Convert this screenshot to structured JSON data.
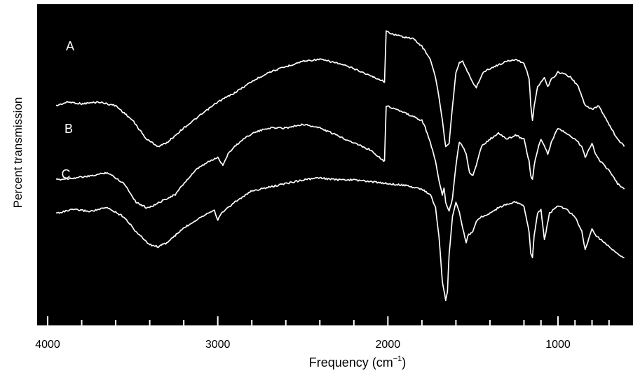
{
  "chart_data": {
    "type": "line",
    "xlabel": "Frequency (cm",
    "xlabel_sup": "−1",
    "xlabel_close": ")",
    "ylabel": "Percent transmission",
    "x_reversed": true,
    "xlim": [
      4000,
      610
    ],
    "x_tick_labels": [
      {
        "value": 4000,
        "label": "4000"
      },
      {
        "value": 3000,
        "label": "3000"
      },
      {
        "value": 2000,
        "label": "2000"
      },
      {
        "value": 1000,
        "label": "1000"
      }
    ],
    "minor_ticks": [
      3800,
      3600,
      3400,
      3200,
      2800,
      2600,
      2400,
      2200,
      1800,
      1600,
      1400,
      1200,
      1100,
      900,
      800,
      700
    ],
    "grid": false,
    "background": "#000000",
    "line_color": "#ffffff",
    "series": [
      {
        "name": "A",
        "points": [
          [
            3950,
            40
          ],
          [
            3880,
            38
          ],
          [
            3800,
            39
          ],
          [
            3700,
            38
          ],
          [
            3600,
            40
          ],
          [
            3500,
            48
          ],
          [
            3420,
            58
          ],
          [
            3350,
            62
          ],
          [
            3300,
            60
          ],
          [
            3200,
            52
          ],
          [
            3100,
            45
          ],
          [
            3000,
            38
          ],
          [
            2900,
            33
          ],
          [
            2800,
            27
          ],
          [
            2700,
            22
          ],
          [
            2600,
            19
          ],
          [
            2500,
            16
          ],
          [
            2400,
            15
          ],
          [
            2300,
            17
          ],
          [
            2200,
            20
          ],
          [
            2100,
            24
          ],
          [
            2020,
            27
          ],
          [
            2010,
            0
          ],
          [
            1950,
            2
          ],
          [
            1850,
            4
          ],
          [
            1800,
            8
          ],
          [
            1750,
            15
          ],
          [
            1720,
            25
          ],
          [
            1700,
            35
          ],
          [
            1680,
            48
          ],
          [
            1660,
            62
          ],
          [
            1640,
            60
          ],
          [
            1620,
            40
          ],
          [
            1600,
            22
          ],
          [
            1580,
            17
          ],
          [
            1560,
            16
          ],
          [
            1540,
            20
          ],
          [
            1520,
            24
          ],
          [
            1500,
            28
          ],
          [
            1480,
            30
          ],
          [
            1460,
            26
          ],
          [
            1440,
            22
          ],
          [
            1400,
            20
          ],
          [
            1350,
            18
          ],
          [
            1300,
            16
          ],
          [
            1250,
            15
          ],
          [
            1200,
            17
          ],
          [
            1170,
            25
          ],
          [
            1160,
            40
          ],
          [
            1150,
            48
          ],
          [
            1140,
            40
          ],
          [
            1120,
            30
          ],
          [
            1080,
            25
          ],
          [
            1060,
            30
          ],
          [
            1040,
            26
          ],
          [
            1000,
            22
          ],
          [
            960,
            23
          ],
          [
            920,
            25
          ],
          [
            880,
            30
          ],
          [
            840,
            40
          ],
          [
            800,
            42
          ],
          [
            760,
            40
          ],
          [
            700,
            50
          ],
          [
            650,
            58
          ],
          [
            610,
            62
          ]
        ]
      },
      {
        "name": "B",
        "points": [
          [
            3950,
            80
          ],
          [
            3850,
            79
          ],
          [
            3750,
            78
          ],
          [
            3650,
            76
          ],
          [
            3550,
            82
          ],
          [
            3480,
            92
          ],
          [
            3420,
            95
          ],
          [
            3380,
            94
          ],
          [
            3300,
            90
          ],
          [
            3250,
            88
          ],
          [
            3200,
            82
          ],
          [
            3120,
            74
          ],
          [
            3050,
            70
          ],
          [
            3000,
            68
          ],
          [
            2970,
            72
          ],
          [
            2940,
            66
          ],
          [
            2900,
            62
          ],
          [
            2850,
            58
          ],
          [
            2800,
            55
          ],
          [
            2700,
            52
          ],
          [
            2600,
            52
          ],
          [
            2500,
            50
          ],
          [
            2400,
            52
          ],
          [
            2300,
            56
          ],
          [
            2200,
            60
          ],
          [
            2100,
            64
          ],
          [
            2020,
            70
          ],
          [
            2010,
            40
          ],
          [
            1950,
            42
          ],
          [
            1900,
            44
          ],
          [
            1850,
            46
          ],
          [
            1800,
            48
          ],
          [
            1780,
            52
          ],
          [
            1750,
            60
          ],
          [
            1720,
            70
          ],
          [
            1700,
            80
          ],
          [
            1680,
            88
          ],
          [
            1670,
            84
          ],
          [
            1660,
            92
          ],
          [
            1640,
            97
          ],
          [
            1620,
            90
          ],
          [
            1600,
            72
          ],
          [
            1580,
            60
          ],
          [
            1560,
            62
          ],
          [
            1540,
            66
          ],
          [
            1520,
            76
          ],
          [
            1500,
            78
          ],
          [
            1480,
            72
          ],
          [
            1450,
            62
          ],
          [
            1400,
            58
          ],
          [
            1350,
            55
          ],
          [
            1300,
            58
          ],
          [
            1250,
            56
          ],
          [
            1200,
            58
          ],
          [
            1170,
            70
          ],
          [
            1160,
            78
          ],
          [
            1150,
            80
          ],
          [
            1140,
            72
          ],
          [
            1120,
            64
          ],
          [
            1100,
            58
          ],
          [
            1080,
            62
          ],
          [
            1060,
            66
          ],
          [
            1040,
            60
          ],
          [
            1000,
            52
          ],
          [
            950,
            55
          ],
          [
            900,
            58
          ],
          [
            860,
            62
          ],
          [
            840,
            68
          ],
          [
            800,
            60
          ],
          [
            780,
            66
          ],
          [
            750,
            70
          ],
          [
            700,
            75
          ],
          [
            650,
            82
          ],
          [
            610,
            85
          ]
        ]
      },
      {
        "name": "C",
        "points": [
          [
            3950,
            98
          ],
          [
            3850,
            96
          ],
          [
            3750,
            97
          ],
          [
            3650,
            95
          ],
          [
            3550,
            100
          ],
          [
            3480,
            108
          ],
          [
            3400,
            115
          ],
          [
            3350,
            116
          ],
          [
            3300,
            114
          ],
          [
            3200,
            106
          ],
          [
            3100,
            100
          ],
          [
            3020,
            96
          ],
          [
            3000,
            102
          ],
          [
            2980,
            98
          ],
          [
            2900,
            92
          ],
          [
            2800,
            86
          ],
          [
            2700,
            84
          ],
          [
            2600,
            82
          ],
          [
            2500,
            80
          ],
          [
            2400,
            79
          ],
          [
            2300,
            80
          ],
          [
            2200,
            80
          ],
          [
            2100,
            81
          ],
          [
            2000,
            82
          ],
          [
            1900,
            83
          ],
          [
            1800,
            85
          ],
          [
            1750,
            88
          ],
          [
            1720,
            95
          ],
          [
            1700,
            110
          ],
          [
            1680,
            135
          ],
          [
            1660,
            145
          ],
          [
            1650,
            140
          ],
          [
            1640,
            120
          ],
          [
            1620,
            100
          ],
          [
            1600,
            92
          ],
          [
            1580,
            97
          ],
          [
            1560,
            106
          ],
          [
            1540,
            114
          ],
          [
            1530,
            110
          ],
          [
            1500,
            108
          ],
          [
            1480,
            102
          ],
          [
            1450,
            100
          ],
          [
            1400,
            98
          ],
          [
            1350,
            95
          ],
          [
            1300,
            93
          ],
          [
            1250,
            92
          ],
          [
            1200,
            94
          ],
          [
            1170,
            108
          ],
          [
            1160,
            120
          ],
          [
            1150,
            122
          ],
          [
            1140,
            110
          ],
          [
            1120,
            98
          ],
          [
            1100,
            96
          ],
          [
            1090,
            104
          ],
          [
            1080,
            112
          ],
          [
            1070,
            108
          ],
          [
            1050,
            98
          ],
          [
            1000,
            94
          ],
          [
            950,
            96
          ],
          [
            900,
            100
          ],
          [
            860,
            108
          ],
          [
            840,
            118
          ],
          [
            820,
            112
          ],
          [
            800,
            106
          ],
          [
            780,
            110
          ],
          [
            750,
            112
          ],
          [
            700,
            116
          ],
          [
            650,
            120
          ],
          [
            610,
            122
          ]
        ]
      }
    ]
  }
}
